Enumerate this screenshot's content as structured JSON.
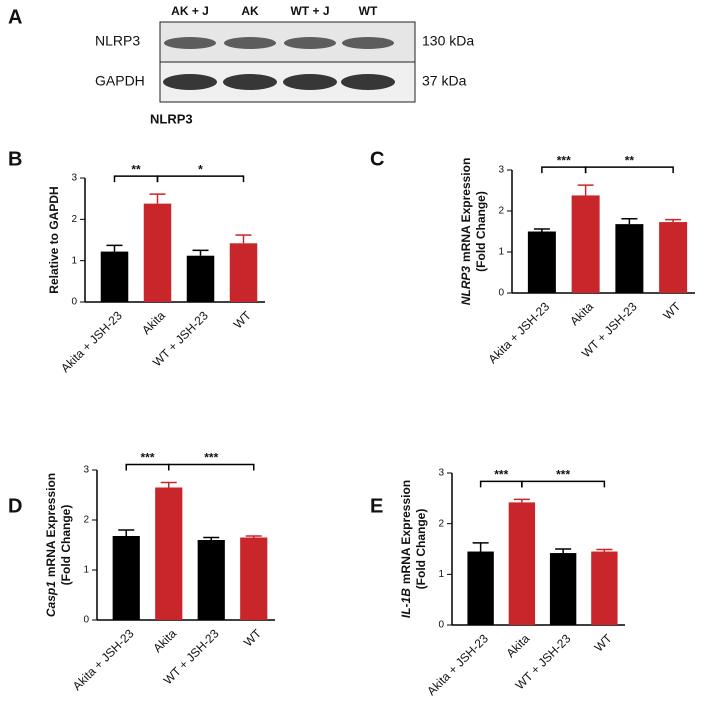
{
  "blot": {
    "panel": "A",
    "lanes": [
      "AK + J",
      "AK",
      "WT + J",
      "WT"
    ],
    "rows": [
      {
        "protein": "NLRP3",
        "size": "130 kDa"
      },
      {
        "protein": "GAPDH",
        "size": "37 kDa"
      }
    ],
    "caption": "NLRP3"
  },
  "chart_data": [
    {
      "type": "bar",
      "panel": "B",
      "ylabel": [
        [
          "Relative to GAPDH"
        ]
      ],
      "categories": [
        "Akita + JSH-23",
        "Akita",
        "WT + JSH-23",
        "WT"
      ],
      "values": [
        1.22,
        2.38,
        1.12,
        1.42
      ],
      "errors": [
        0.15,
        0.23,
        0.13,
        0.2
      ],
      "colors": [
        "#000000",
        "#c8262b",
        "#000000",
        "#c8262b"
      ],
      "ylim": [
        0,
        3
      ],
      "yticks": [
        0,
        1,
        2,
        3
      ],
      "significance": [
        {
          "from": 0,
          "to": 1,
          "label": "**"
        },
        {
          "from": 1,
          "to": 3,
          "label": "*"
        }
      ]
    },
    {
      "type": "bar",
      "panel": "C",
      "ylabel": [
        [
          "NLRP3",
          "mRNA Expression"
        ],
        [
          "(Fold Change)"
        ]
      ],
      "categories": [
        "Akita + JSH-23",
        "Akita",
        "WT + JSH-23",
        "WT"
      ],
      "values": [
        1.5,
        2.38,
        1.68,
        1.73
      ],
      "errors": [
        0.06,
        0.25,
        0.13,
        0.06
      ],
      "colors": [
        "#000000",
        "#c8262b",
        "#000000",
        "#c8262b"
      ],
      "ylim": [
        0,
        3
      ],
      "yticks": [
        0,
        1,
        2,
        3
      ],
      "significance": [
        {
          "from": 0,
          "to": 1,
          "label": "***"
        },
        {
          "from": 1,
          "to": 3,
          "label": "**"
        }
      ]
    },
    {
      "type": "bar",
      "panel": "D",
      "ylabel": [
        [
          "Casp1",
          "mRNA Expression"
        ],
        [
          "(Fold Change)"
        ]
      ],
      "categories": [
        "Akita + JSH-23",
        "Akita",
        "WT + JSH-23",
        "WT"
      ],
      "values": [
        1.68,
        2.65,
        1.6,
        1.65
      ],
      "errors": [
        0.12,
        0.1,
        0.05,
        0.03
      ],
      "colors": [
        "#000000",
        "#c8262b",
        "#000000",
        "#c8262b"
      ],
      "ylim": [
        0,
        3
      ],
      "yticks": [
        0,
        1,
        2,
        3
      ],
      "significance": [
        {
          "from": 0,
          "to": 1,
          "label": "***"
        },
        {
          "from": 1,
          "to": 3,
          "label": "***"
        }
      ]
    },
    {
      "type": "bar",
      "panel": "E",
      "ylabel": [
        [
          "IL-1B",
          "mRNA Expression"
        ],
        [
          "(Fold Change)"
        ]
      ],
      "categories": [
        "Akita + JSH-23",
        "Akita",
        "WT + JSH-23",
        "WT"
      ],
      "values": [
        1.45,
        2.42,
        1.42,
        1.45
      ],
      "errors": [
        0.17,
        0.06,
        0.08,
        0.04
      ],
      "colors": [
        "#000000",
        "#c8262b",
        "#000000",
        "#c8262b"
      ],
      "ylim": [
        0,
        3
      ],
      "yticks": [
        0,
        1,
        2,
        3
      ],
      "significance": [
        {
          "from": 0,
          "to": 1,
          "label": "***"
        },
        {
          "from": 1,
          "to": 3,
          "label": "***"
        }
      ]
    }
  ]
}
